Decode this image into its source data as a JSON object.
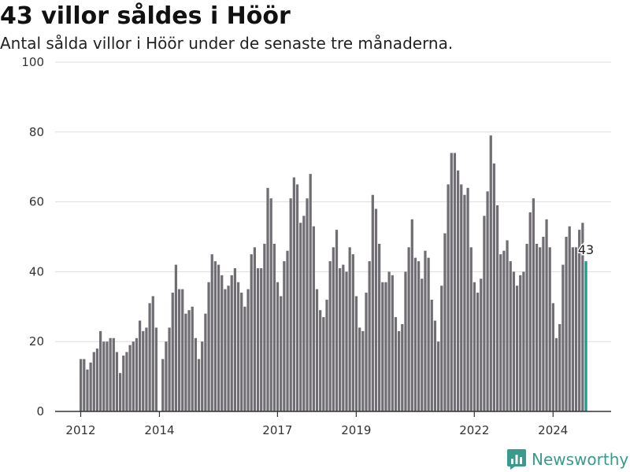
{
  "header": {
    "title": "43 villor såldes i Höör",
    "subtitle": "Antal sålda villor i Höör under de senaste tre månaderna."
  },
  "brand": {
    "name": "Newsworthy",
    "icon": "bar-chart-logo-icon",
    "color": "#3a9a8c"
  },
  "colors": {
    "bar": "#706e73",
    "highlight": "#1d9a8a",
    "grid": "#dddddd",
    "axis": "#333333"
  },
  "chart_data": {
    "type": "bar",
    "title": "43 villor såldes i Höör",
    "subtitle": "Antal sålda villor i Höör under de senaste tre månaderna.",
    "xlabel": "",
    "ylabel": "",
    "ylim": [
      0,
      100
    ],
    "yticks": [
      0,
      20,
      40,
      60,
      80,
      100
    ],
    "grid": true,
    "legend": "none",
    "x_start": "2012-01",
    "x_step": "month",
    "xticks": [
      {
        "label": "2012",
        "x": "2012-01"
      },
      {
        "label": "2014",
        "x": "2014-01"
      },
      {
        "label": "2017",
        "x": "2017-01"
      },
      {
        "label": "2019",
        "x": "2019-01"
      },
      {
        "label": "2022",
        "x": "2022-01"
      },
      {
        "label": "2024",
        "x": "2024-01"
      }
    ],
    "values": [
      15,
      15,
      12,
      14,
      17,
      18,
      23,
      20,
      20,
      21,
      21,
      17,
      11,
      16,
      17,
      19,
      20,
      21,
      26,
      23,
      24,
      31,
      33,
      24,
      null,
      15,
      20,
      24,
      34,
      42,
      35,
      35,
      28,
      29,
      30,
      21,
      15,
      20,
      28,
      37,
      45,
      43,
      42,
      39,
      35,
      36,
      39,
      41,
      37,
      34,
      30,
      35,
      45,
      47,
      41,
      41,
      48,
      64,
      61,
      48,
      37,
      33,
      43,
      46,
      61,
      67,
      65,
      54,
      56,
      61,
      68,
      53,
      35,
      29,
      27,
      32,
      43,
      47,
      52,
      41,
      42,
      40,
      47,
      45,
      33,
      24,
      23,
      34,
      43,
      62,
      58,
      48,
      37,
      37,
      40,
      39,
      27,
      23,
      25,
      40,
      47,
      55,
      44,
      43,
      38,
      46,
      44,
      32,
      26,
      20,
      36,
      51,
      65,
      74,
      74,
      69,
      65,
      62,
      64,
      47,
      37,
      34,
      38,
      56,
      63,
      79,
      71,
      59,
      45,
      46,
      49,
      43,
      40,
      36,
      39,
      40,
      48,
      57,
      61,
      48,
      47,
      50,
      55,
      47,
      31,
      21,
      25,
      42,
      50,
      53,
      47,
      47,
      52,
      54,
      43
    ],
    "highlight_last": true,
    "last_value_label": "43"
  }
}
